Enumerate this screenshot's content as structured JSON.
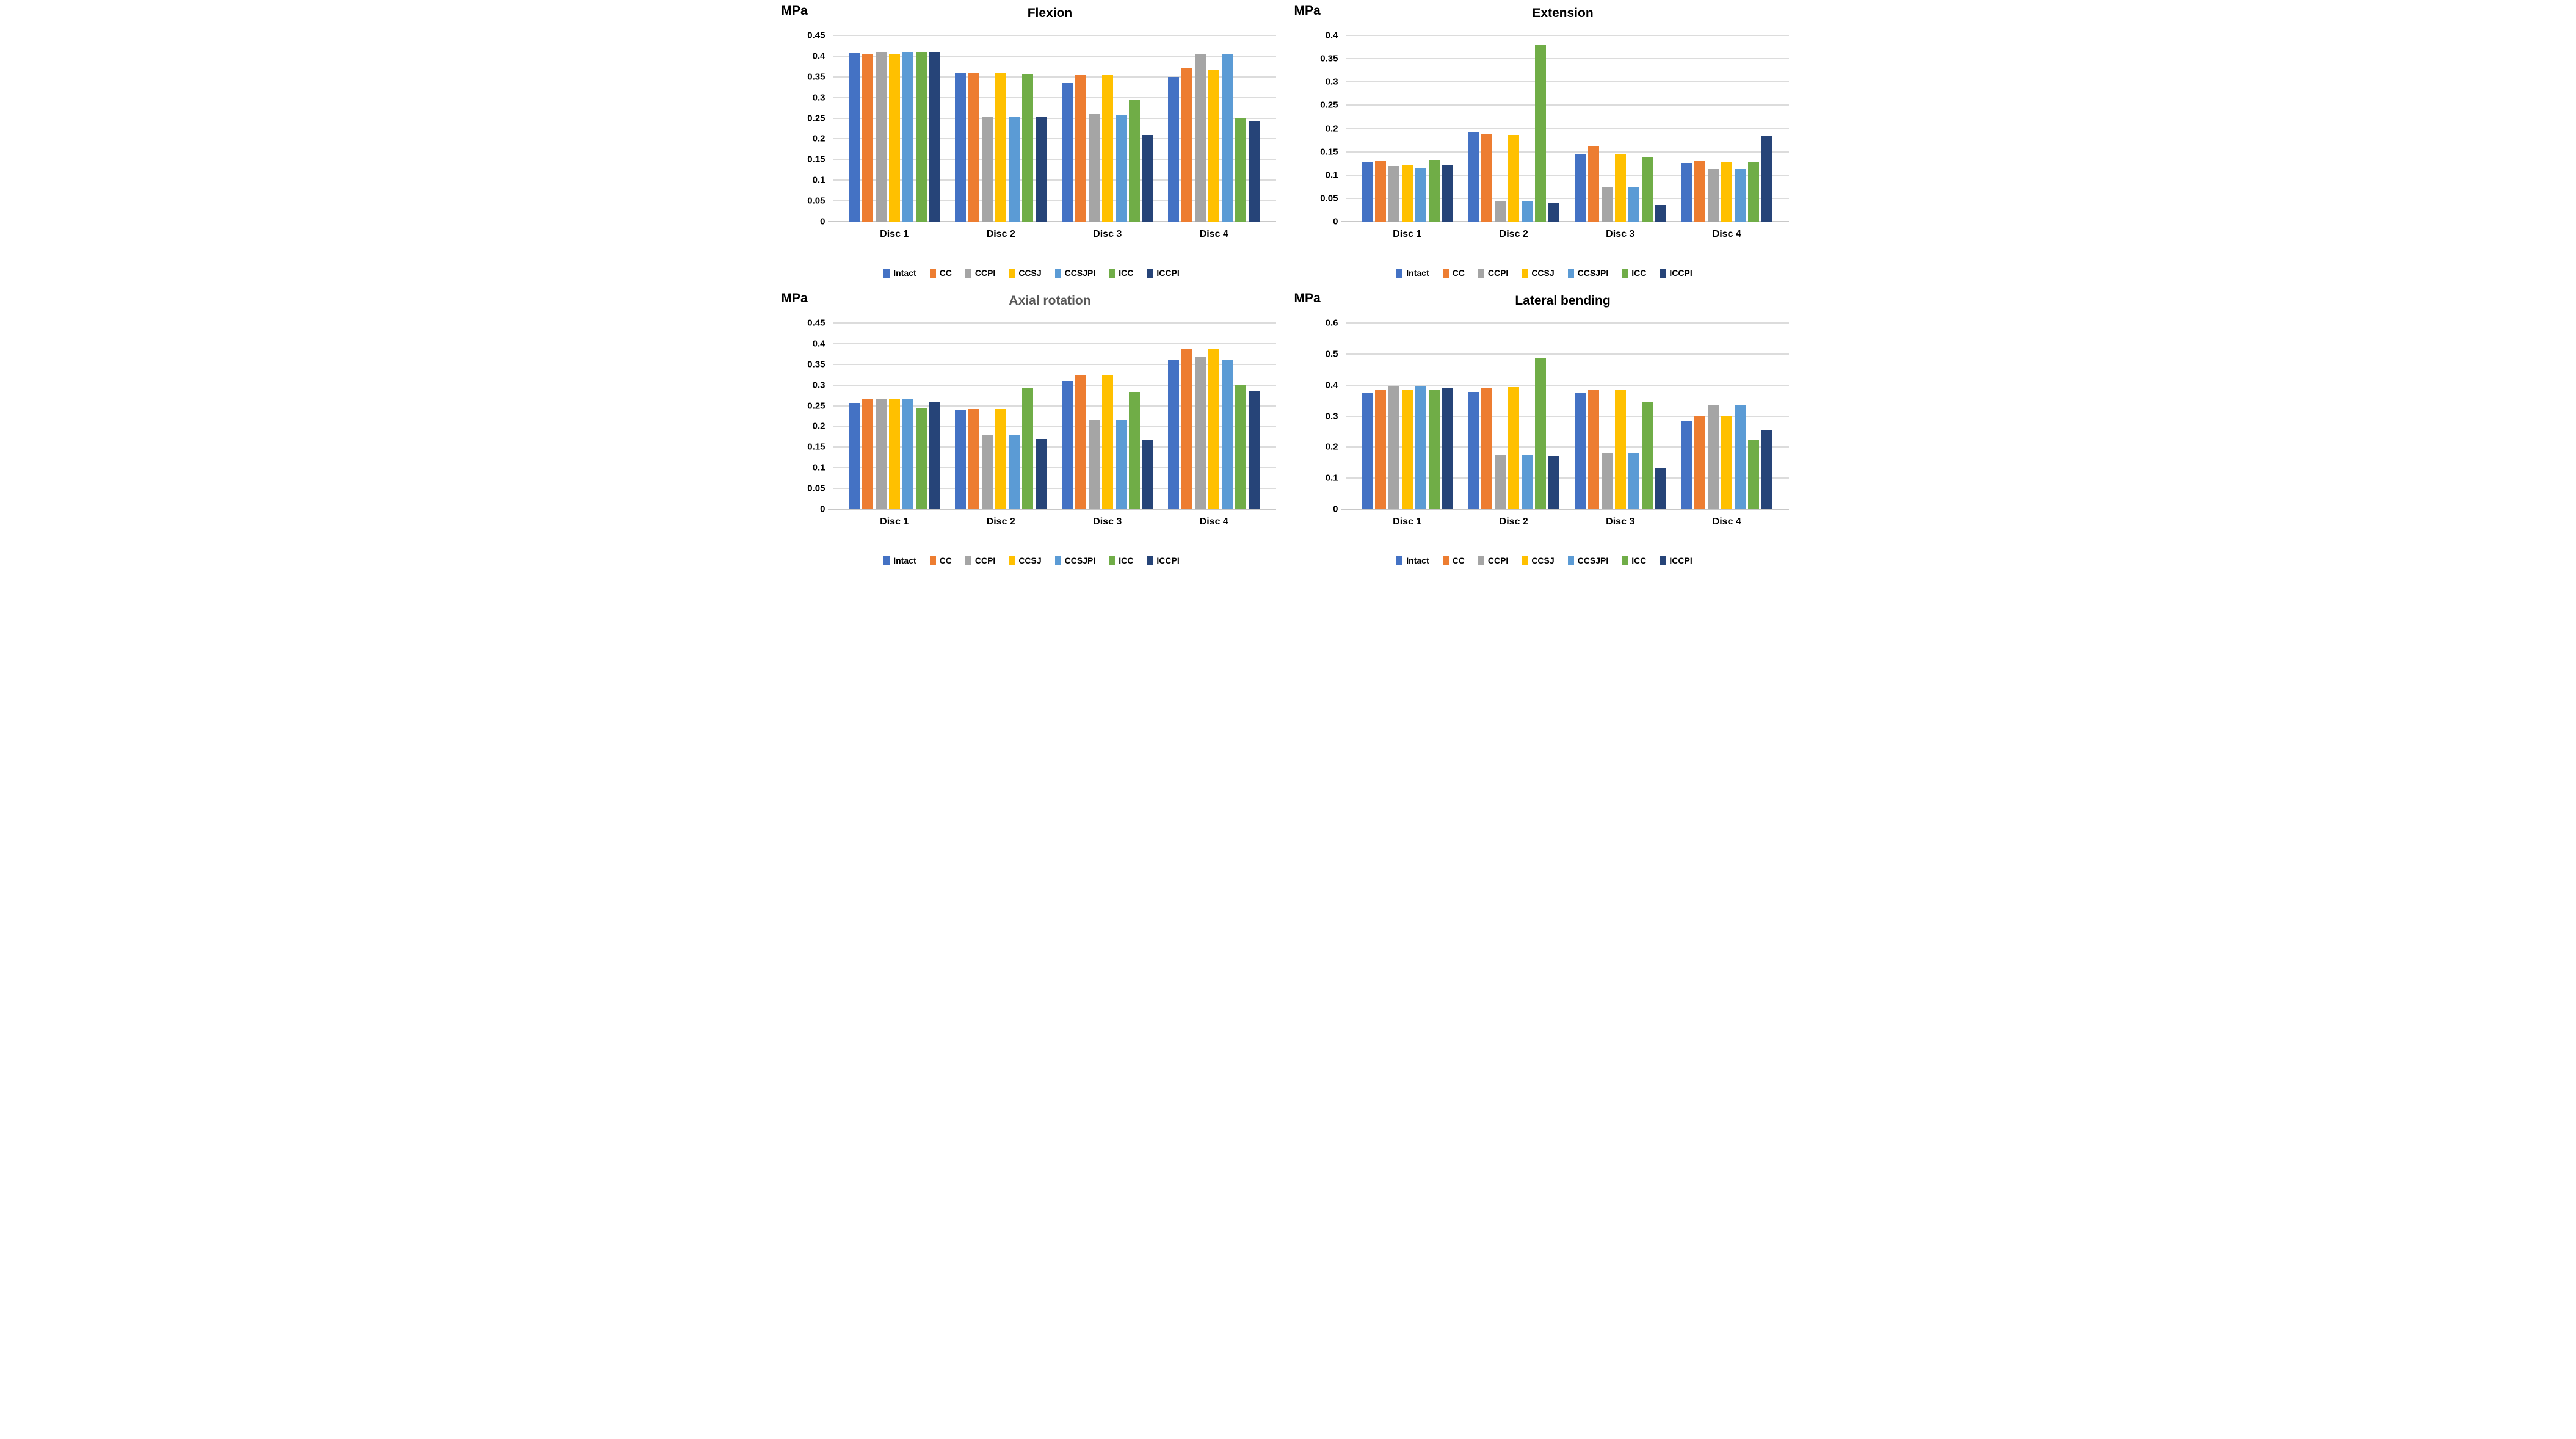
{
  "page": {
    "background": "#ffffff",
    "grid_color": "#DCDCDC",
    "axis_color": "#C8C8C8"
  },
  "chart_data": [
    {
      "type": "bar",
      "title": "Flexion",
      "title_color": "#000000",
      "unit_label": "MPa",
      "categories": [
        "Disc 1",
        "Disc 2",
        "Disc 3",
        "Disc 4"
      ],
      "ylim": [
        0,
        0.45
      ],
      "ytick_step": 0.05,
      "yticks": [
        "0",
        "0.05",
        "0.1",
        "0.15",
        "0.2",
        "0.25",
        "0.3",
        "0.35",
        "0.4",
        "0.45"
      ],
      "grid": true,
      "legend_position": "bottom",
      "series": [
        {
          "name": "Intact",
          "color": "#4472C4",
          "values": [
            0.407,
            0.36,
            0.335,
            0.35
          ]
        },
        {
          "name": "CC",
          "color": "#ED7D31",
          "values": [
            0.405,
            0.36,
            0.354,
            0.37
          ]
        },
        {
          "name": "CCPI",
          "color": "#A5A5A5",
          "values": [
            0.41,
            0.253,
            0.26,
            0.406
          ]
        },
        {
          "name": "CCSJ",
          "color": "#FFC000",
          "values": [
            0.405,
            0.36,
            0.354,
            0.367
          ]
        },
        {
          "name": "CCSJPI",
          "color": "#5B9BD5",
          "values": [
            0.41,
            0.252,
            0.257,
            0.406
          ]
        },
        {
          "name": "ICC",
          "color": "#70AD47",
          "values": [
            0.41,
            0.357,
            0.295,
            0.25
          ]
        },
        {
          "name": "ICCPI",
          "color": "#264478",
          "values": [
            0.41,
            0.252,
            0.21,
            0.243
          ]
        }
      ]
    },
    {
      "type": "bar",
      "title": "Extension",
      "title_color": "#000000",
      "unit_label": "MPa",
      "categories": [
        "Disc 1",
        "Disc 2",
        "Disc 3",
        "Disc 4"
      ],
      "ylim": [
        0,
        0.4
      ],
      "ytick_step": 0.05,
      "yticks": [
        "0",
        "0.05",
        "0.1",
        "0.15",
        "0.2",
        "0.25",
        "0.3",
        "0.35",
        "0.4"
      ],
      "grid": true,
      "legend_position": "bottom",
      "series": [
        {
          "name": "Intact",
          "color": "#4472C4",
          "values": [
            0.128,
            0.192,
            0.146,
            0.126
          ]
        },
        {
          "name": "CC",
          "color": "#ED7D31",
          "values": [
            0.13,
            0.189,
            0.163,
            0.131
          ]
        },
        {
          "name": "CCPI",
          "color": "#A5A5A5",
          "values": [
            0.119,
            0.044,
            0.073,
            0.113
          ]
        },
        {
          "name": "CCSJ",
          "color": "#FFC000",
          "values": [
            0.122,
            0.186,
            0.146,
            0.127
          ]
        },
        {
          "name": "CCSJPI",
          "color": "#5B9BD5",
          "values": [
            0.115,
            0.044,
            0.073,
            0.113
          ]
        },
        {
          "name": "ICC",
          "color": "#70AD47",
          "values": [
            0.133,
            0.38,
            0.139,
            0.129
          ]
        },
        {
          "name": "ICCPI",
          "color": "#264478",
          "values": [
            0.122,
            0.04,
            0.035,
            0.185
          ]
        }
      ]
    },
    {
      "type": "bar",
      "title": "Axial rotation",
      "title_color": "#595959",
      "unit_label": "MPa",
      "categories": [
        "Disc 1",
        "Disc 2",
        "Disc 3",
        "Disc 4"
      ],
      "ylim": [
        0,
        0.45
      ],
      "ytick_step": 0.05,
      "yticks": [
        "0",
        "0.05",
        "0.1",
        "0.15",
        "0.2",
        "0.25",
        "0.3",
        "0.35",
        "0.4",
        "0.45"
      ],
      "grid": true,
      "legend_position": "bottom",
      "series": [
        {
          "name": "Intact",
          "color": "#4472C4",
          "values": [
            0.257,
            0.24,
            0.31,
            0.36
          ]
        },
        {
          "name": "CC",
          "color": "#ED7D31",
          "values": [
            0.267,
            0.242,
            0.324,
            0.388
          ]
        },
        {
          "name": "CCPI",
          "color": "#A5A5A5",
          "values": [
            0.267,
            0.18,
            0.216,
            0.368
          ]
        },
        {
          "name": "CCSJ",
          "color": "#FFC000",
          "values": [
            0.267,
            0.242,
            0.324,
            0.388
          ]
        },
        {
          "name": "CCSJPI",
          "color": "#5B9BD5",
          "values": [
            0.267,
            0.18,
            0.216,
            0.362
          ]
        },
        {
          "name": "ICC",
          "color": "#70AD47",
          "values": [
            0.245,
            0.294,
            0.284,
            0.301
          ]
        },
        {
          "name": "ICCPI",
          "color": "#264478",
          "values": [
            0.26,
            0.17,
            0.167,
            0.286
          ]
        }
      ]
    },
    {
      "type": "bar",
      "title": "Lateral bending",
      "title_color": "#000000",
      "unit_label": "MPa",
      "categories": [
        "Disc 1",
        "Disc 2",
        "Disc 3",
        "Disc 4"
      ],
      "ylim": [
        0,
        0.6
      ],
      "ytick_step": 0.1,
      "yticks": [
        "0",
        "0.1",
        "0.2",
        "0.3",
        "0.4",
        "0.5",
        "0.6"
      ],
      "grid": true,
      "legend_position": "bottom",
      "series": [
        {
          "name": "Intact",
          "color": "#4472C4",
          "values": [
            0.375,
            0.377,
            0.376,
            0.284
          ]
        },
        {
          "name": "CC",
          "color": "#ED7D31",
          "values": [
            0.386,
            0.391,
            0.386,
            0.301
          ]
        },
        {
          "name": "CCPI",
          "color": "#A5A5A5",
          "values": [
            0.396,
            0.174,
            0.181,
            0.334
          ]
        },
        {
          "name": "CCSJ",
          "color": "#FFC000",
          "values": [
            0.386,
            0.393,
            0.386,
            0.301
          ]
        },
        {
          "name": "CCSJPI",
          "color": "#5B9BD5",
          "values": [
            0.396,
            0.174,
            0.181,
            0.334
          ]
        },
        {
          "name": "ICC",
          "color": "#70AD47",
          "values": [
            0.386,
            0.486,
            0.344,
            0.223
          ]
        },
        {
          "name": "ICCPI",
          "color": "#264478",
          "values": [
            0.391,
            0.171,
            0.131,
            0.255
          ]
        }
      ]
    }
  ]
}
